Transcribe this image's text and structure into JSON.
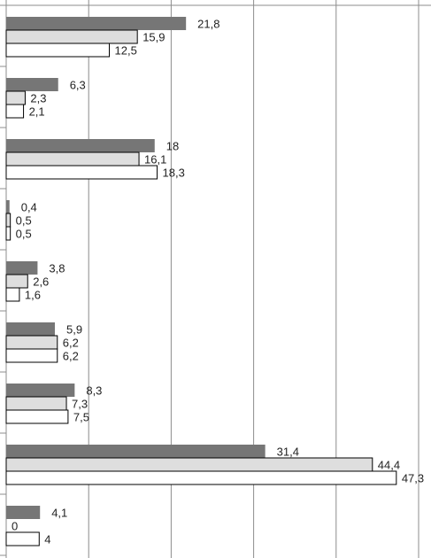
{
  "chart_data": {
    "type": "bar",
    "orientation": "horizontal",
    "grid": true,
    "xlim": [
      0,
      50
    ],
    "grid_step": 10,
    "categories": [
      "",
      "",
      "",
      "",
      "",
      "",
      "",
      "",
      ""
    ],
    "series": [
      {
        "color": "#767676",
        "values": [
          21.8,
          6.3,
          18,
          0.4,
          3.8,
          5.9,
          8.3,
          31.4,
          4.1
        ]
      },
      {
        "color": "#dedede",
        "values": [
          15.9,
          2.3,
          16.1,
          0.5,
          2.6,
          6.2,
          7.3,
          44.4,
          0
        ]
      },
      {
        "color": "#ffffff",
        "values": [
          12.5,
          2.1,
          18.3,
          0.5,
          1.6,
          6.2,
          7.5,
          47.3,
          4
        ]
      }
    ],
    "data_labels": [
      [
        "21,8",
        "6,3",
        "18",
        "0,4",
        "3,8",
        "5,9",
        "8,3",
        "31,4",
        "4,1"
      ],
      [
        "15,9",
        "2,3",
        "16,1",
        "0,5",
        "2,6",
        "6,2",
        "7,3",
        "44,4",
        "0"
      ],
      [
        "12,5",
        "2,1",
        "18,3",
        "0,5",
        "1,6",
        "6,2",
        "7,5",
        "47,3",
        "4"
      ]
    ]
  }
}
